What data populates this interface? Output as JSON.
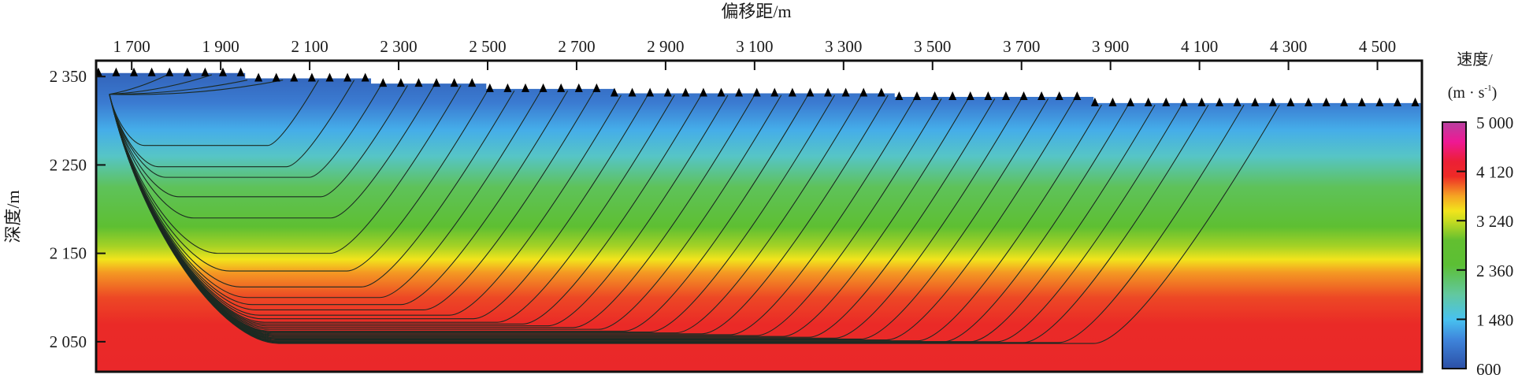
{
  "chart_data": {
    "type": "heatmap",
    "title": "",
    "xlabel": "偏移距/m",
    "ylabel": "深度/m",
    "xlim": [
      1620,
      4600
    ],
    "ylim": [
      2016,
      2368
    ],
    "x_ticks": [
      1700,
      1900,
      2100,
      2300,
      2500,
      2700,
      2900,
      3100,
      3300,
      3500,
      3700,
      3900,
      4100,
      4300,
      4500
    ],
    "x_tick_labels": [
      "1 700",
      "1 900",
      "2 100",
      "2 300",
      "2 500",
      "2 700",
      "2 900",
      "3 100",
      "3 300",
      "3 500",
      "3 700",
      "3 900",
      "4 100",
      "4 300",
      "4 500"
    ],
    "y_ticks": [
      2350,
      2250,
      2150,
      2050
    ],
    "y_tick_labels": [
      "2 350",
      "2 250",
      "2 150",
      "2 050"
    ],
    "colorbar": {
      "title_line1": "速度/",
      "title_line2": "(m · s",
      "title_sup": "-1",
      "title_close": ")",
      "range": [
        600,
        5000
      ],
      "ticks": [
        600,
        1480,
        2360,
        3240,
        4120,
        5000
      ],
      "tick_labels": [
        "600",
        "1 480",
        "2 360",
        "3 240",
        "4 120",
        "5 000"
      ]
    },
    "surface": [
      [
        1620,
        2354
      ],
      [
        1955,
        2354
      ],
      [
        1955,
        2348
      ],
      [
        2238,
        2348
      ],
      [
        2238,
        2342
      ],
      [
        2497,
        2342
      ],
      [
        2497,
        2336
      ],
      [
        2785,
        2336
      ],
      [
        2785,
        2331
      ],
      [
        3415,
        2331
      ],
      [
        3415,
        2327
      ],
      [
        3862,
        2327
      ],
      [
        3862,
        2320
      ],
      [
        4600,
        2320
      ]
    ],
    "velocity_layers": [
      {
        "depth": 2368,
        "velocity": 700
      },
      {
        "depth": 2320,
        "velocity": 1000
      },
      {
        "depth": 2290,
        "velocity": 1350
      },
      {
        "depth": 2260,
        "velocity": 1700
      },
      {
        "depth": 2225,
        "velocity": 2200
      },
      {
        "depth": 2180,
        "velocity": 2500
      },
      {
        "depth": 2158,
        "velocity": 2900
      },
      {
        "depth": 2143,
        "velocity": 3240
      },
      {
        "depth": 2128,
        "velocity": 3600
      },
      {
        "depth": 2100,
        "velocity": 3950
      },
      {
        "depth": 2070,
        "velocity": 4120
      },
      {
        "depth": 2016,
        "velocity": 4200
      }
    ],
    "source": [
      1650,
      2330
    ],
    "receiver_spacing_m": 40,
    "rays": [
      [
        1780,
        2340
      ],
      [
        1880,
        2337
      ],
      [
        1960,
        2334
      ],
      [
        2040,
        2331
      ],
      [
        2120,
        2272
      ],
      [
        2200,
        2248
      ],
      [
        2260,
        2236
      ],
      [
        2320,
        2214
      ],
      [
        2380,
        2190
      ],
      [
        2440,
        2150
      ],
      [
        2500,
        2130
      ],
      [
        2560,
        2112
      ],
      [
        2620,
        2100
      ],
      [
        2680,
        2092
      ],
      [
        2740,
        2086
      ],
      [
        2800,
        2080
      ],
      [
        2860,
        2076
      ],
      [
        2920,
        2072
      ],
      [
        2980,
        2070
      ],
      [
        3040,
        2068
      ],
      [
        3100,
        2066
      ],
      [
        3160,
        2064
      ],
      [
        3220,
        2062
      ],
      [
        3280,
        2061
      ],
      [
        3340,
        2060
      ],
      [
        3400,
        2059
      ],
      [
        3460,
        2058
      ],
      [
        3520,
        2057
      ],
      [
        3580,
        2056
      ],
      [
        3640,
        2055
      ],
      [
        3700,
        2054
      ],
      [
        3760,
        2053
      ],
      [
        3820,
        2052
      ],
      [
        3880,
        2051
      ],
      [
        3940,
        2050
      ],
      [
        4000,
        2050
      ],
      [
        4060,
        2050
      ],
      [
        4120,
        2049
      ],
      [
        4200,
        2049
      ],
      [
        4280,
        2048
      ]
    ]
  }
}
